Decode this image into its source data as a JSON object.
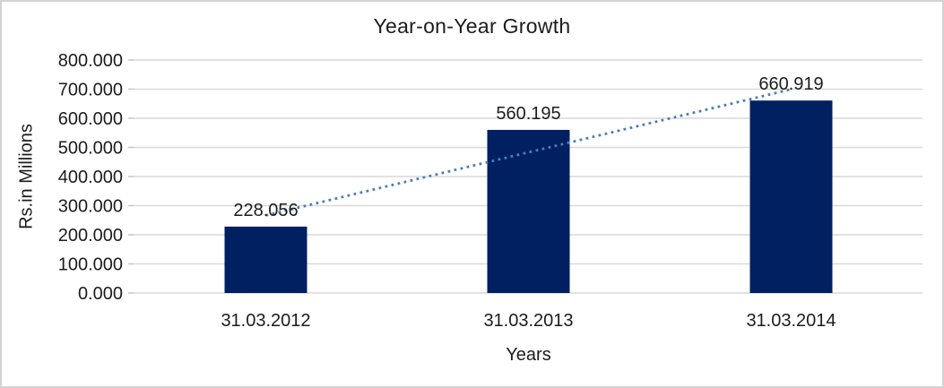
{
  "chart_data": {
    "type": "bar",
    "title": "Year-on-Year Growth",
    "xlabel": "Years",
    "ylabel": "Rs.in Millions",
    "categories": [
      "31.03.2012",
      "31.03.2013",
      "31.03.2014"
    ],
    "values": [
      228.056,
      560.195,
      660.919
    ],
    "value_labels": [
      "228.056",
      "560.195",
      "660.919"
    ],
    "ylim": [
      0,
      800
    ],
    "ytick_step": 100,
    "ytick_labels": [
      "0.000",
      "100.000",
      "200.000",
      "300.000",
      "400.000",
      "500.000",
      "600.000",
      "700.000",
      "800.000"
    ],
    "grid": true,
    "legend_position": "none",
    "bar_color": "#002062",
    "trendline": {
      "type": "linear",
      "style": "dotted",
      "color": "#4a7ebb"
    },
    "gridline_color": "#d9d9d9",
    "tick_color": "#c3c3c3",
    "frame_border_color": "#d3d3d3",
    "text_color": "#1c1c1c",
    "background_color": "#ffffff"
  }
}
